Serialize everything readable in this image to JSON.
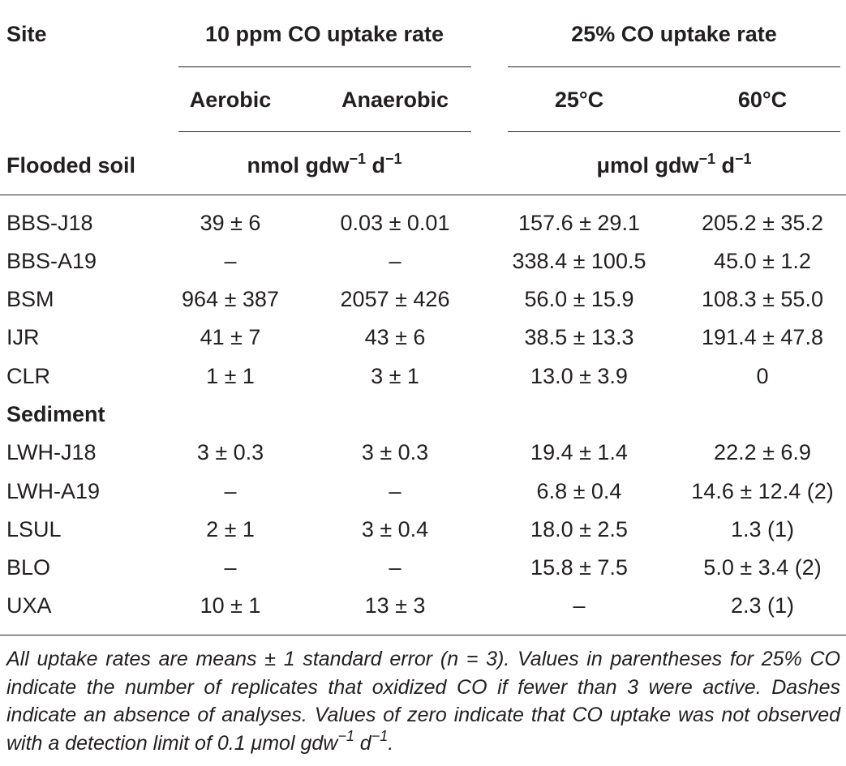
{
  "header": {
    "site": "Site",
    "group1": "10 ppm CO uptake rate",
    "group2": "25% CO uptake rate",
    "sub": [
      "Aerobic",
      "Anaerobic",
      "25°C",
      "60°C"
    ],
    "flooded_soil": "Flooded soil",
    "unit1_base": "nmol gdw",
    "unit1_exp1": "−1",
    "unit1_d": " d",
    "unit1_exp2": "−1",
    "unit2_base": "μmol gdw",
    "unit2_exp1": "−1",
    "unit2_d": " d",
    "unit2_exp2": "−1"
  },
  "sections": {
    "sediment": "Sediment"
  },
  "rows": [
    {
      "site": "BBS-J18",
      "aerobic": "39 ± 6",
      "anaerobic": "0.03 ± 0.01",
      "c25": "157.6 ± 29.1",
      "c60": "205.2 ± 35.2"
    },
    {
      "site": "BBS-A19",
      "aerobic": "–",
      "anaerobic": "–",
      "c25": "338.4 ± 100.5",
      "c60": "45.0 ± 1.2"
    },
    {
      "site": "BSM",
      "aerobic": "964 ± 387",
      "anaerobic": "2057 ± 426",
      "c25": "56.0 ± 15.9",
      "c60": "108.3 ± 55.0"
    },
    {
      "site": "IJR",
      "aerobic": "41 ± 7",
      "anaerobic": "43 ± 6",
      "c25": "38.5 ± 13.3",
      "c60": "191.4 ± 47.8"
    },
    {
      "site": "CLR",
      "aerobic": "1 ± 1",
      "anaerobic": "3 ± 1",
      "c25": "13.0 ± 3.9",
      "c60": "0"
    },
    {
      "site": "LWH-J18",
      "aerobic": "3 ± 0.3",
      "anaerobic": "3 ± 0.3",
      "c25": "19.4 ± 1.4",
      "c60": "22.2 ± 6.9"
    },
    {
      "site": "LWH-A19",
      "aerobic": "–",
      "anaerobic": "–",
      "c25": "6.8 ± 0.4",
      "c60": "14.6 ± 12.4 (2)"
    },
    {
      "site": "LSUL",
      "aerobic": "2 ± 1",
      "anaerobic": "3 ± 0.4",
      "c25": "18.0 ± 2.5",
      "c60": "1.3 (1)"
    },
    {
      "site": "BLO",
      "aerobic": "–",
      "anaerobic": "–",
      "c25": "15.8 ± 7.5",
      "c60": "5.0 ± 3.4 (2)"
    },
    {
      "site": "UXA",
      "aerobic": "10 ± 1",
      "anaerobic": "13 ± 3",
      "c25": "–",
      "c60": "2.3 (1)"
    }
  ],
  "footnote": {
    "text": "All uptake rates are means ± 1 standard error (n = 3). Values in parentheses for 25% CO indicate the number of replicates that oxidized CO if fewer than 3 were active. Dashes indicate an absence of analyses. Values of zero indicate that CO uptake was not observed with a detection limit of 0.1 μmol gdw",
    "exp1": "−1",
    "d": " d",
    "exp2": "−1",
    "end": "."
  }
}
